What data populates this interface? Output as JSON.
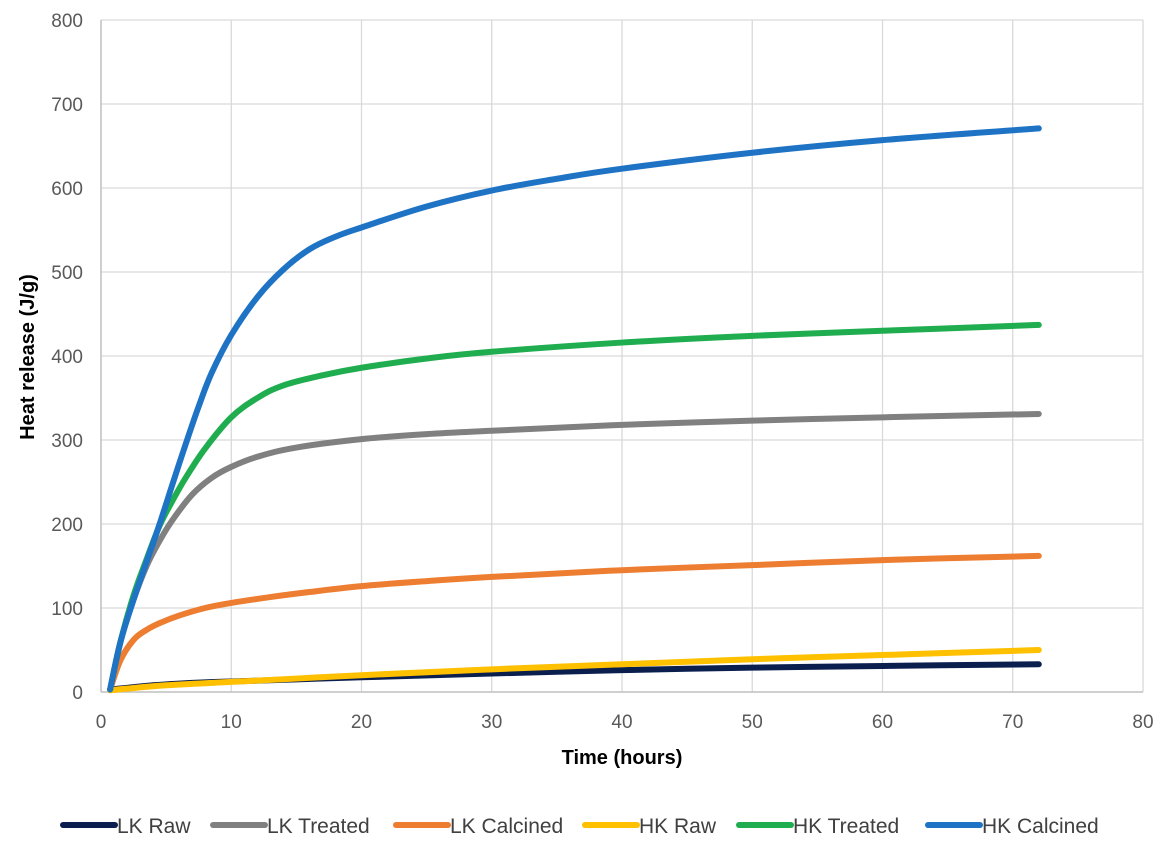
{
  "chart_data": {
    "type": "line",
    "title": "",
    "xlabel": "Time (hours)",
    "ylabel": "Heat release (J/g)",
    "xlim": [
      0,
      80
    ],
    "ylim": [
      0,
      800
    ],
    "x_ticks": [
      0,
      10,
      20,
      30,
      40,
      50,
      60,
      70,
      80
    ],
    "y_ticks": [
      0,
      100,
      200,
      300,
      400,
      500,
      600,
      700,
      800
    ],
    "grid": true,
    "legend_position": "bottom",
    "series": [
      {
        "name": "LK Raw",
        "color": "#0b1f4f",
        "x": [
          0.7,
          2,
          4,
          6,
          8,
          10,
          15,
          20,
          30,
          40,
          50,
          60,
          72
        ],
        "y": [
          3,
          5,
          8,
          10,
          11.5,
          12.5,
          15,
          17.5,
          22,
          26,
          29,
          31,
          33
        ]
      },
      {
        "name": "LK Treated",
        "color": "#808080",
        "x": [
          0.7,
          1.5,
          2.5,
          3.5,
          4.5,
          5.5,
          7,
          8.5,
          10,
          12,
          15,
          20,
          25,
          30,
          40,
          50,
          60,
          72
        ],
        "y": [
          3,
          60,
          110,
          150,
          180,
          205,
          235,
          255,
          268,
          280,
          291,
          301,
          307,
          311,
          318,
          323,
          327,
          331
        ]
      },
      {
        "name": "LK Calcined",
        "color": "#ed7d31",
        "x": [
          0.7,
          1.5,
          2.5,
          3.5,
          4.5,
          6,
          8,
          10,
          13,
          16,
          20,
          25,
          30,
          40,
          50,
          60,
          72
        ],
        "y": [
          3,
          38,
          62,
          74,
          82,
          91,
          100,
          106,
          113,
          119,
          126,
          132,
          137,
          145,
          151,
          157,
          162
        ]
      },
      {
        "name": "HK Raw",
        "color": "#ffc000",
        "x": [
          0.7,
          2,
          5,
          10,
          15,
          20,
          30,
          40,
          50,
          60,
          72
        ],
        "y": [
          2,
          4,
          8,
          12,
          16,
          20,
          27,
          33,
          39,
          44,
          50
        ]
      },
      {
        "name": "HK Treated",
        "color": "#1fad4f",
        "x": [
          0.7,
          1.5,
          2.5,
          3.5,
          4.5,
          5.5,
          6.5,
          8,
          10,
          12,
          14,
          17,
          20,
          25,
          30,
          40,
          50,
          60,
          72
        ],
        "y": [
          3,
          60,
          115,
          158,
          198,
          228,
          255,
          290,
          327,
          350,
          365,
          377,
          386,
          397,
          405,
          416,
          424,
          430,
          437
        ]
      },
      {
        "name": "HK Calcined",
        "color": "#1f73c4",
        "x": [
          0.7,
          1.5,
          2.5,
          3.5,
          4.5,
          5.5,
          6.5,
          7.5,
          8.5,
          10,
          12,
          14,
          16,
          18,
          20,
          25,
          30,
          35,
          40,
          50,
          60,
          72
        ],
        "y": [
          3,
          60,
          110,
          155,
          200,
          248,
          295,
          340,
          380,
          425,
          470,
          503,
          527,
          542,
          553,
          578,
          597,
          611,
          623,
          642,
          657,
          671
        ]
      }
    ]
  }
}
